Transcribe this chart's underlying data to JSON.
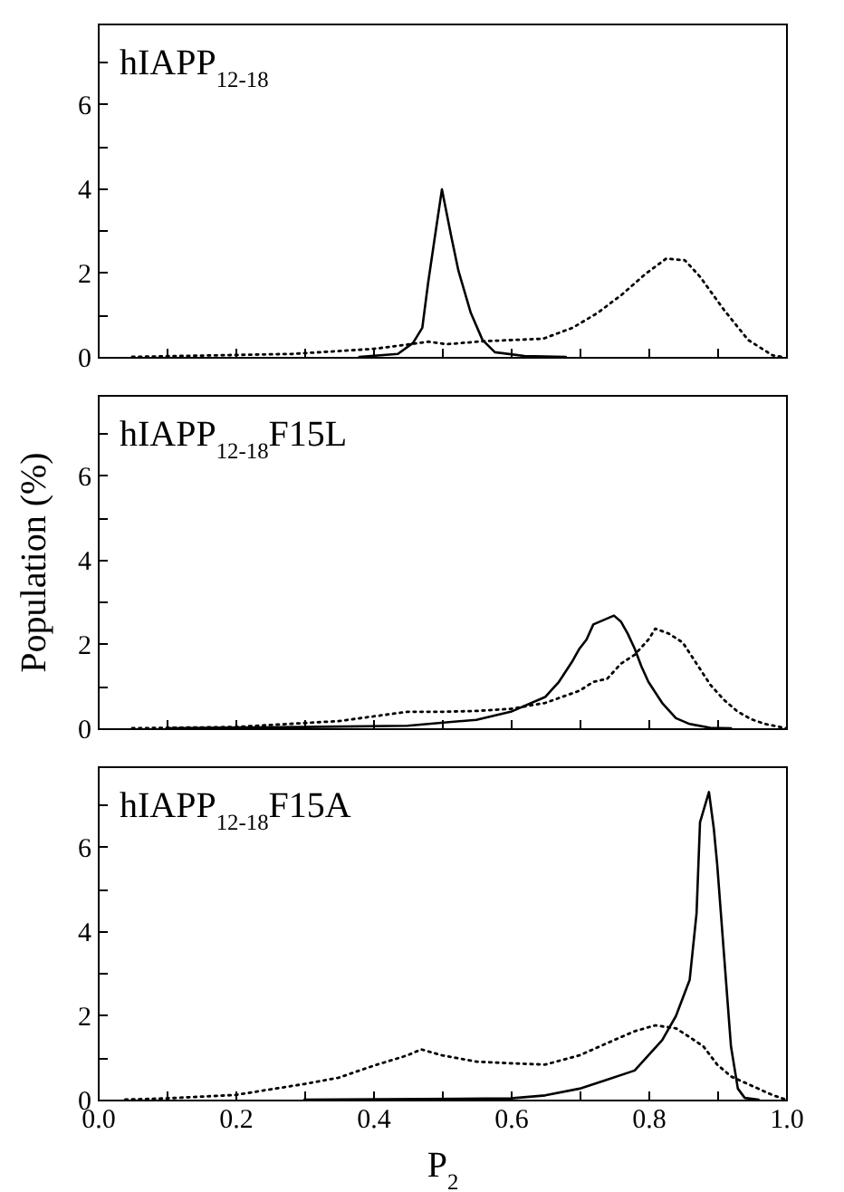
{
  "chart_data": [
    {
      "type": "line",
      "title": "hIAPP$_{12-18}$",
      "xlim": [
        0,
        1
      ],
      "ylim": [
        0,
        7.9
      ],
      "tick_labels": "y",
      "xticks": [
        0,
        0.1,
        0.2,
        0.3,
        0.4,
        0.5,
        0.6,
        0.7,
        0.8,
        0.9,
        1
      ],
      "yticks": [
        0,
        {
          "value": 1,
          "label": null
        },
        2,
        {
          "value": 3,
          "label": null
        },
        4,
        {
          "value": 5,
          "label": null
        },
        6,
        {
          "value": 7,
          "label": null
        }
      ],
      "series": [
        {
          "color": "#000000",
          "line_style": "solid",
          "x": [
            0.38,
            0.436,
            0.458,
            0.4715,
            0.48,
            0.489,
            0.5,
            0.513,
            0.524,
            0.542,
            0.559,
            0.577,
            0.62,
            0.68
          ],
          "values": [
            0,
            0.07,
            0.33,
            0.69,
            1.76,
            2.76,
            3.97,
            2.9,
            2.04,
            1.04,
            0.4,
            0.11,
            0.02,
            0
          ]
        },
        {
          "color": "#000000",
          "line_style": "dotted",
          "x": [
            0.05,
            0.283,
            0.401,
            0.454,
            0.48,
            0.507,
            0.559,
            0.647,
            0.69,
            0.726,
            0.761,
            0.796,
            0.826,
            0.853,
            0.875,
            0.91,
            0.945,
            0.98,
            0.993
          ],
          "values": [
            0,
            0.07,
            0.19,
            0.3,
            0.36,
            0.3,
            0.37,
            0.43,
            0.69,
            1.04,
            1.47,
            1.97,
            2.33,
            2.29,
            1.9,
            1.11,
            0.4,
            0.04,
            0
          ]
        }
      ]
    },
    {
      "type": "line",
      "title": "hIAPP$_{12-18}$F15L",
      "ylabel": "Population (%)",
      "xlim": [
        0,
        1
      ],
      "ylim": [
        0,
        7.9
      ],
      "tick_labels": "y",
      "xticks": [
        0,
        0.1,
        0.2,
        0.3,
        0.4,
        0.5,
        0.6,
        0.7,
        0.8,
        0.9,
        1
      ],
      "yticks": [
        0,
        {
          "value": 1,
          "label": null
        },
        2,
        {
          "value": 3,
          "label": null
        },
        4,
        {
          "value": 5,
          "label": null
        },
        6,
        {
          "value": 7,
          "label": null
        }
      ],
      "series": [
        {
          "color": "#000000",
          "line_style": "solid",
          "x": [
            0.1,
            0.3,
            0.45,
            0.55,
            0.6,
            0.65,
            0.67,
            0.69,
            0.7,
            0.71,
            0.72,
            0.73,
            0.74,
            0.75,
            0.76,
            0.77,
            0.78,
            0.79,
            0.8,
            0.82,
            0.84,
            0.86,
            0.89,
            0.92
          ],
          "values": [
            0,
            0.03,
            0.06,
            0.2,
            0.39,
            0.74,
            1.1,
            1.6,
            1.89,
            2.1,
            2.46,
            2.53,
            2.6,
            2.67,
            2.53,
            2.24,
            1.89,
            1.46,
            1.1,
            0.6,
            0.24,
            0.1,
            0.01,
            0
          ]
        },
        {
          "color": "#000000",
          "line_style": "dotted",
          "x": [
            0.05,
            0.2,
            0.35,
            0.45,
            0.5,
            0.55,
            0.6,
            0.65,
            0.7,
            0.72,
            0.74,
            0.76,
            0.78,
            0.8,
            0.81,
            0.83,
            0.85,
            0.87,
            0.89,
            0.91,
            0.93,
            0.95,
            0.97,
            1.0
          ],
          "values": [
            0,
            0.03,
            0.17,
            0.39,
            0.39,
            0.41,
            0.46,
            0.6,
            0.89,
            1.1,
            1.17,
            1.53,
            1.74,
            2.1,
            2.36,
            2.24,
            2.03,
            1.53,
            1.03,
            0.67,
            0.39,
            0.21,
            0.1,
            0
          ]
        }
      ]
    },
    {
      "type": "line",
      "title": "hIAPP$_{12-18}$F15A",
      "xlabel": "P$_{2}$",
      "xlim": [
        0,
        1
      ],
      "ylim": [
        0,
        7.9
      ],
      "xticks": [
        {
          "value": 0,
          "label": "0.0"
        },
        {
          "value": 0.1,
          "label": null
        },
        {
          "value": 0.2,
          "label": "0.2"
        },
        {
          "value": 0.3,
          "label": null
        },
        {
          "value": 0.4,
          "label": "0.4"
        },
        {
          "value": 0.5,
          "label": null
        },
        {
          "value": 0.6,
          "label": "0.6"
        },
        {
          "value": 0.7,
          "label": null
        },
        {
          "value": 0.8,
          "label": "0.8"
        },
        {
          "value": 0.9,
          "label": null
        },
        {
          "value": 1,
          "label": "1.0"
        }
      ],
      "yticks": [
        0,
        {
          "value": 1,
          "label": null
        },
        2,
        {
          "value": 3,
          "label": null
        },
        4,
        {
          "value": 5,
          "label": null
        },
        6,
        {
          "value": 7,
          "label": null
        }
      ],
      "series": [
        {
          "color": "#000000",
          "line_style": "solid",
          "x": [
            0.3,
            0.6,
            0.65,
            0.7,
            0.74,
            0.78,
            0.8,
            0.82,
            0.84,
            0.85,
            0.86,
            0.87,
            0.875,
            0.888,
            0.895,
            0.9,
            0.91,
            0.92,
            0.93,
            0.94,
            0.96
          ],
          "values": [
            0,
            0.03,
            0.1,
            0.26,
            0.47,
            0.69,
            1.05,
            1.41,
            1.98,
            2.41,
            2.84,
            4.42,
            6.57,
            7.29,
            6.43,
            5.57,
            3.41,
            1.26,
            0.26,
            0.04,
            0
          ]
        },
        {
          "color": "#000000",
          "line_style": "dotted",
          "x": [
            0.04,
            0.1,
            0.2,
            0.3,
            0.35,
            0.4,
            0.45,
            0.47,
            0.5,
            0.55,
            0.6,
            0.65,
            0.7,
            0.75,
            0.78,
            0.81,
            0.84,
            0.86,
            0.88,
            0.9,
            0.92,
            0.95,
            0.98,
            1.0
          ],
          "values": [
            0,
            0.03,
            0.11,
            0.37,
            0.52,
            0.8,
            1.05,
            1.19,
            1.05,
            0.9,
            0.86,
            0.83,
            1.05,
            1.41,
            1.62,
            1.76,
            1.69,
            1.48,
            1.26,
            0.83,
            0.55,
            0.33,
            0.11,
            0
          ]
        }
      ]
    }
  ]
}
